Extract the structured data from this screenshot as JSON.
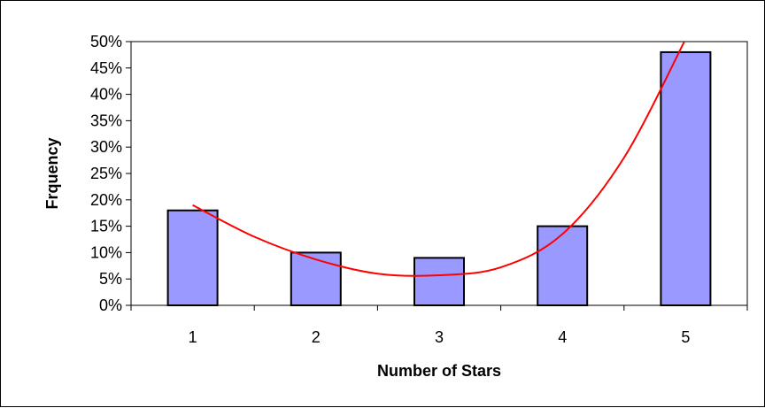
{
  "chart_data": {
    "type": "bar",
    "title": "",
    "xlabel": "Number of Stars",
    "ylabel": "Frquency",
    "categories": [
      "1",
      "2",
      "3",
      "4",
      "5"
    ],
    "series": [
      {
        "values": [
          18,
          10,
          9,
          15,
          48
        ],
        "color": "#9999ff",
        "border": "#000000"
      }
    ],
    "trendline": {
      "type": "polynomial",
      "color": "#ff0000",
      "x": [
        1,
        1.5,
        2,
        2.5,
        3,
        3.5,
        4,
        4.5,
        5
      ],
      "y": [
        19,
        13,
        8.7,
        6,
        5.7,
        7.2,
        13.5,
        28,
        50.5
      ]
    },
    "yticks": [
      "0%",
      "5%",
      "10%",
      "15%",
      "20%",
      "25%",
      "30%",
      "35%",
      "40%",
      "45%",
      "50%"
    ],
    "ylim": [
      0,
      50
    ],
    "y_unit": "%",
    "grid": false,
    "legend": "none"
  }
}
